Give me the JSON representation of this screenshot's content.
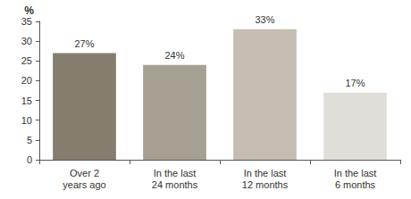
{
  "chart_data": {
    "type": "bar",
    "ylabel": "%",
    "categories": [
      "Over 2\nyears ago",
      "In the last\n24 months",
      "In the last\n12 months",
      "In the last\n6 months"
    ],
    "values": [
      27,
      24,
      33,
      17
    ],
    "value_labels": [
      "27%",
      "24%",
      "33%",
      "17%"
    ],
    "colors": [
      "#857d6e",
      "#a6a093",
      "#c4bdb1",
      "#e1deda"
    ],
    "ylim": [
      0,
      35
    ],
    "yticks": [
      0,
      5,
      10,
      15,
      20,
      25,
      30,
      35
    ],
    "grid": false,
    "data_labels": true
  }
}
